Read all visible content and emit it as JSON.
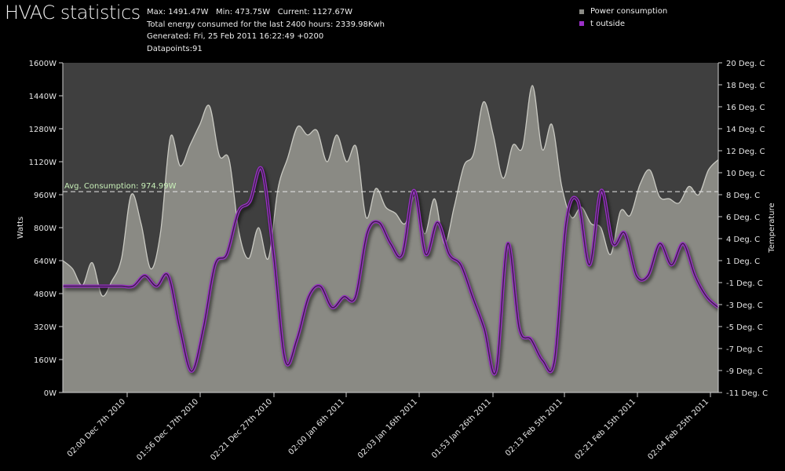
{
  "page": {
    "title": "HVAC statistics",
    "stats": {
      "minmax": "Max: 1491.47W   Min: 473.75W   Current: 1127.67W",
      "total": "Total energy consumed for the last 2400 hours: 2339.98Kwh",
      "generated": "Generated: Fri, 25 Feb 2011 16:22:49 +0200",
      "datapoints": "Datapoints:91"
    }
  },
  "chart_data": {
    "type": "area",
    "title": "HVAC statistics",
    "x_tick_labels": [
      "02:00 Dec 7th 2010",
      "01:56 Dec 17th 2010",
      "02:21 Dec 27th 2010",
      "02:00 Jan 6th 2011",
      "02:03 Jan 16th 2011",
      "01:53 Jan 26th 2011",
      "02:13 Feb 5th 2011",
      "02:21 Feb 15th 2011",
      "02:04 Feb 25th 2011"
    ],
    "y_left": {
      "label": "Watts",
      "ticks": [
        "0W",
        "160W",
        "320W",
        "480W",
        "640W",
        "800W",
        "960W",
        "1120W",
        "1280W",
        "1440W",
        "1600W"
      ],
      "range": [
        0,
        1600
      ]
    },
    "y_right": {
      "label": "Temperature",
      "ticks": [
        "-11 Deg. C",
        "-9 Deg. C",
        "-7 Deg. C",
        "-5 Deg. C",
        "-3 Deg. C",
        "-1 Deg. C",
        "1 Deg. C",
        "4 Deg. C",
        "6 Deg. C",
        "8 Deg. C",
        "10 Deg. C",
        "12 Deg. C",
        "14 Deg. C",
        "16 Deg. C",
        "18 Deg. C",
        "20 Deg. C"
      ],
      "range": [
        -11,
        20
      ]
    },
    "average": {
      "label": "Avg. Consumption: 974.99W",
      "value": 974.99
    },
    "legend_position": "top-right",
    "series": [
      {
        "name": "Power consumption",
        "color": "#8a8a84",
        "axis": "left",
        "values": [
          640,
          600,
          520,
          630,
          470,
          540,
          650,
          960,
          820,
          600,
          780,
          1240,
          1100,
          1200,
          1300,
          1390,
          1150,
          1130,
          780,
          650,
          800,
          650,
          990,
          1140,
          1290,
          1250,
          1270,
          1120,
          1250,
          1120,
          1190,
          850,
          990,
          900,
          870,
          820,
          950,
          770,
          940,
          720,
          900,
          1100,
          1160,
          1410,
          1250,
          1040,
          1200,
          1190,
          1490,
          1180,
          1300,
          1000,
          850,
          900,
          820,
          800,
          670,
          880,
          860,
          1010,
          1080,
          950,
          940,
          920,
          1000,
          960,
          1080,
          1130
        ]
      },
      {
        "name": "t outside",
        "color": "#9b30c8",
        "axis": "right",
        "values": [
          -1,
          -1,
          -1,
          -1,
          -1,
          -1,
          -1,
          0,
          -1,
          0,
          -5,
          -9,
          -5,
          1,
          2,
          6,
          7,
          10,
          2,
          -8,
          -6,
          -2,
          -1,
          -3,
          -2,
          -2,
          4,
          5,
          3,
          2,
          8,
          2,
          5,
          2,
          1,
          -2,
          -5,
          -9,
          3,
          -5,
          -6,
          -8,
          -8,
          5,
          7,
          1,
          8,
          3,
          4,
          0,
          0,
          3,
          1,
          3,
          0,
          -2,
          -3
        ]
      }
    ]
  }
}
